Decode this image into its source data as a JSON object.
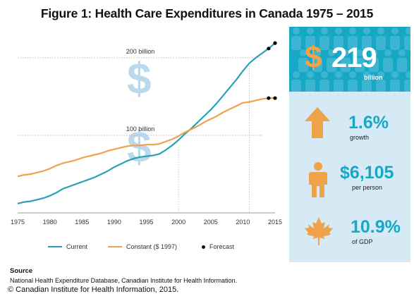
{
  "title": "Figure 1: Health Care Expenditures in Canada 1975 – 2015",
  "chart_data": {
    "type": "line",
    "xlim": [
      1975,
      2015
    ],
    "ylim": [
      0,
      240
    ],
    "xticks": [
      1975,
      1980,
      1985,
      1990,
      1995,
      2000,
      2005,
      2010,
      2015
    ],
    "x": [
      1975,
      1976,
      1977,
      1978,
      1979,
      1980,
      1981,
      1982,
      1983,
      1984,
      1985,
      1986,
      1987,
      1988,
      1989,
      1990,
      1991,
      1992,
      1993,
      1994,
      1995,
      1996,
      1997,
      1998,
      1999,
      2000,
      2001,
      2002,
      2003,
      2004,
      2005,
      2006,
      2007,
      2008,
      2009,
      2010,
      2011,
      2012,
      2013
    ],
    "series": [
      {
        "name": "Current",
        "color": "#2aa0b8",
        "values": [
          12,
          14,
          15,
          17,
          19,
          22,
          26,
          31,
          34,
          37,
          40,
          43,
          46,
          50,
          54,
          59,
          63,
          67,
          70,
          72,
          73,
          74,
          76,
          81,
          87,
          94,
          102,
          109,
          117,
          125,
          133,
          142,
          152,
          162,
          172,
          183,
          193,
          200,
          206
        ]
      },
      {
        "name": "Constant ($ 1997)",
        "color": "#efa24a",
        "values": [
          47,
          49,
          50,
          52,
          54,
          57,
          61,
          64,
          66,
          68,
          71,
          73,
          75,
          77,
          80,
          82,
          84,
          86,
          87,
          87,
          88,
          88,
          89,
          92,
          95,
          99,
          104,
          108,
          112,
          117,
          121,
          125,
          130,
          134,
          138,
          142,
          143,
          145,
          147
        ]
      },
      {
        "name": "Forecast",
        "color": "#000000",
        "points": [
          {
            "series": "Current",
            "x": 2014,
            "y": 212
          },
          {
            "series": "Current",
            "x": 2015,
            "y": 219
          },
          {
            "series": "Constant ($ 1997)",
            "x": 2014,
            "y": 148
          },
          {
            "series": "Constant ($ 1997)",
            "x": 2015,
            "y": 148
          }
        ]
      }
    ],
    "reference_lines": [
      {
        "value": 200,
        "label": "200 billion"
      },
      {
        "value": 100,
        "label": "100 billion"
      }
    ],
    "vertical_reference_lines": [
      2000,
      2011
    ],
    "legend": [
      "Current",
      "Constant ($ 1997)",
      "Forecast"
    ]
  },
  "legend": {
    "current": "Current",
    "constant": "Constant ($ 1997)",
    "forecast": "Forecast"
  },
  "panel": {
    "dollar_sign": "$",
    "total": "219",
    "total_unit": "billion",
    "growth_value": "1.6%",
    "growth_label": "growth",
    "per_person_value": "$6,105",
    "per_person_label": "per person",
    "gdp_value": "10.9%",
    "gdp_label": "of GDP"
  },
  "source": {
    "heading": "Source",
    "text": "National Health Expenditure Database, Canadian Institute for Health Information.",
    "copyright": "© Canadian Institute for Health Information, 2015."
  },
  "colors": {
    "current": "#2aa0b8",
    "constant": "#efa24a",
    "panel_top": "#17a8c6",
    "panel_bottom": "#d5eaf4",
    "accent_orange": "#f3a249"
  }
}
